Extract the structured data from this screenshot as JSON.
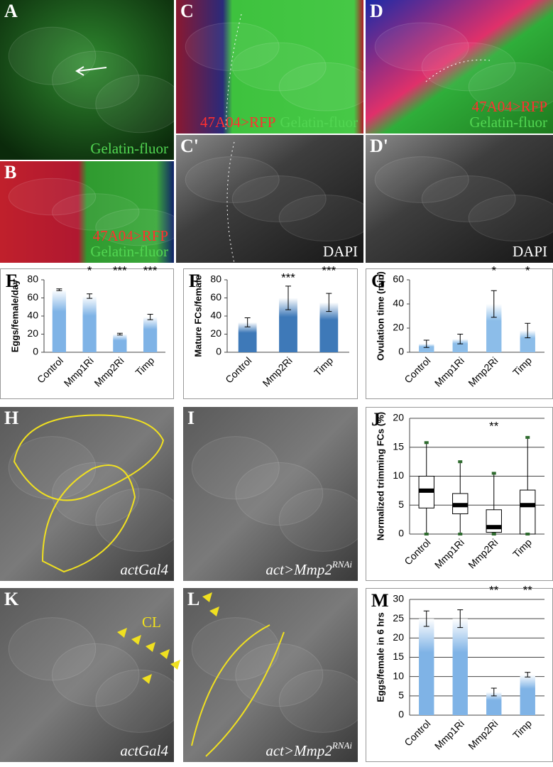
{
  "image_panels": [
    {
      "panel": "A",
      "captions": [
        [
          {
            "text": "Gelatin-fluor",
            "color": "#52d652"
          }
        ]
      ]
    },
    {
      "panel": "B",
      "captions": [
        [
          {
            "text": "47A04>RFP",
            "color": "#ff3030"
          }
        ],
        [
          {
            "text": "Gelatin-fluor",
            "color": "#52d652"
          }
        ]
      ]
    },
    {
      "panel": "C",
      "captions": [
        [
          {
            "text": "47A04>RFP",
            "color": "#ff3030"
          },
          {
            "text": "Gelatin-fluor",
            "color": "#52d652"
          }
        ]
      ]
    },
    {
      "panel": "C'",
      "captions": [
        [
          {
            "text": "DAPI",
            "color": "#ffffff"
          }
        ]
      ]
    },
    {
      "panel": "D",
      "captions": [
        [
          {
            "text": "47A04>RFP",
            "color": "#ff3030"
          }
        ],
        [
          {
            "text": "Gelatin-fluor",
            "color": "#52d652"
          }
        ]
      ]
    },
    {
      "panel": "D'",
      "captions": [
        [
          {
            "text": "DAPI",
            "color": "#ffffff"
          }
        ]
      ]
    },
    {
      "panel": "H",
      "captions": [
        [
          {
            "text": "actGal4",
            "color": "#ffffff",
            "style": "italic"
          }
        ]
      ]
    },
    {
      "panel": "I",
      "captions": [
        [
          {
            "text": "act>Mmp2",
            "sup": "RNAi",
            "color": "#ffffff",
            "style": "italic"
          }
        ]
      ]
    },
    {
      "panel": "K",
      "captions": [
        [
          {
            "text": "actGal4",
            "color": "#ffffff",
            "style": "italic"
          }
        ]
      ],
      "tag": {
        "text": "CL",
        "color": "#f2e21c"
      }
    },
    {
      "panel": "L",
      "captions": [
        [
          {
            "text": "act>Mmp2",
            "sup": "RNAi",
            "color": "#ffffff",
            "style": "italic"
          }
        ]
      ]
    }
  ],
  "chart_data": [
    {
      "type": "bar",
      "panel": "E",
      "y_label": "Eggs/female/day",
      "categories": [
        "Control",
        "Mmp1Ri",
        "Mmp2Ri",
        "Timp"
      ],
      "values": [
        69,
        62,
        20,
        39
      ],
      "errors": [
        1,
        2.5,
        1,
        3
      ],
      "significance": [
        null,
        "*",
        "***",
        "***"
      ],
      "color": "#7fb3e6",
      "ylim": [
        0,
        80
      ],
      "yticks": [
        0,
        20,
        40,
        60,
        80
      ],
      "grid": false
    },
    {
      "type": "bar",
      "panel": "F",
      "y_label": "Mature FCs/female",
      "categories": [
        "Control",
        "Mmp2Ri",
        "Timp"
      ],
      "values": [
        33,
        60,
        55
      ],
      "errors": [
        5,
        13,
        10
      ],
      "significance": [
        null,
        "***",
        "***"
      ],
      "color": "#3e79b8",
      "ylim": [
        0,
        80
      ],
      "yticks": [
        0,
        20,
        40,
        60,
        80
      ],
      "grid": false
    },
    {
      "type": "bar",
      "panel": "G",
      "y_label": "Ovulation time (min)",
      "categories": [
        "Control",
        "Mmp1Ri",
        "Mmp2Ri",
        "Timp"
      ],
      "values": [
        7,
        11,
        40,
        18
      ],
      "errors": [
        3,
        4,
        11,
        6
      ],
      "significance": [
        null,
        null,
        "*",
        "*"
      ],
      "color": "#8cbde9",
      "ylim": [
        0,
        60
      ],
      "yticks": [
        0,
        20,
        40,
        60
      ],
      "grid": false
    },
    {
      "type": "box",
      "panel": "J",
      "y_label": "Normalized trimming FCs (%)",
      "categories": [
        "Control",
        "Mmp1Ri",
        "Mmp2Ri",
        "Timp"
      ],
      "boxes": [
        {
          "min": 0,
          "q1": 4.5,
          "median": 7.5,
          "q3": 10,
          "max": 15.8
        },
        {
          "min": 0,
          "q1": 3.5,
          "median": 5,
          "q3": 7,
          "max": 12.5
        },
        {
          "min": 0,
          "q1": 0.3,
          "median": 1.2,
          "q3": 4.2,
          "max": 10.5
        },
        {
          "min": 0,
          "q1": 0,
          "median": 5,
          "q3": 7.6,
          "max": 16.7
        }
      ],
      "significance": [
        null,
        null,
        "**",
        null
      ],
      "color": "#000000",
      "ylim": [
        0,
        20
      ],
      "yticks": [
        0,
        5,
        10,
        15,
        20
      ],
      "grid": true
    },
    {
      "type": "bar",
      "panel": "M",
      "y_label": "Eggs/female in 6 hrs",
      "categories": [
        "Control",
        "Mmp1Ri",
        "Mmp2Ri",
        "Timp"
      ],
      "values": [
        25,
        25,
        6,
        10.5
      ],
      "errors": [
        2,
        2.3,
        1,
        0.6
      ],
      "significance": [
        null,
        null,
        "**",
        "**"
      ],
      "color": "#7fb3e6",
      "ylim": [
        0,
        30
      ],
      "yticks": [
        0,
        5,
        10,
        15,
        20,
        25,
        30
      ],
      "grid": true
    }
  ]
}
